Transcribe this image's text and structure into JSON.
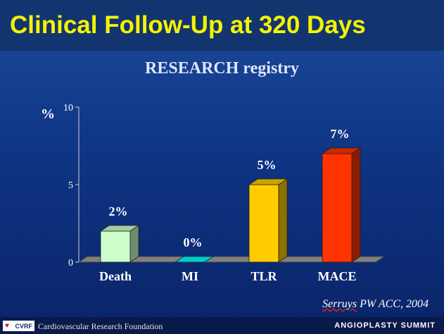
{
  "slide": {
    "title": "Clinical Follow-Up at 320 Days",
    "subtitle": "RESEARCH registry",
    "citation_author": "Serruys",
    "citation_rest": " PW ACC, 2004"
  },
  "footer": {
    "logo_text": "CVRF",
    "organization": "Cardiovascular Research Foundation",
    "event": "ANGIOPLASTY SUMMIT"
  },
  "chart_data": {
    "type": "bar",
    "title": "RESEARCH registry",
    "ylabel": "%",
    "ylim": [
      0,
      10
    ],
    "yticks": [
      0,
      5,
      10
    ],
    "categories": [
      "Death",
      "MI",
      "TLR",
      "MACE"
    ],
    "values": [
      2,
      0,
      5,
      7
    ],
    "data_labels": [
      "2%",
      "0%",
      "5%",
      "7%"
    ],
    "colors": [
      "#ccffcc",
      "#00cccc",
      "#ffcc00",
      "#ff3300"
    ],
    "grid": false,
    "style": "3d"
  }
}
